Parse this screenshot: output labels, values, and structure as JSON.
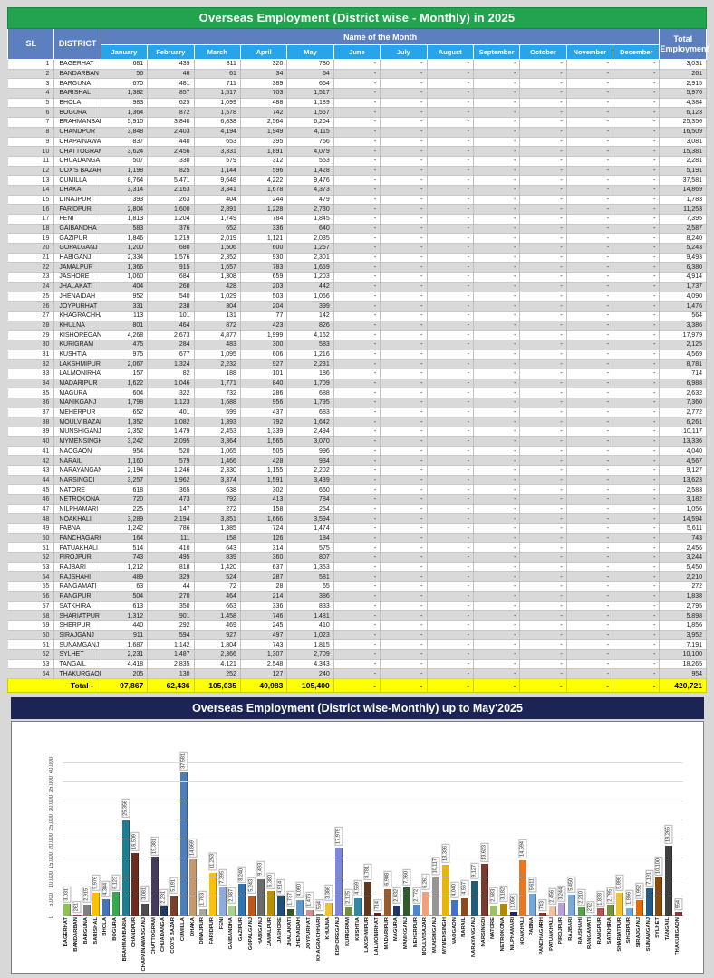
{
  "colors": {
    "page_bg": "#D8D8D8",
    "table_title_bg": "#21A44D",
    "header_band_bg": "#5B7FBF",
    "months_row_bg": "#29A4E9",
    "total_row_bg": "#FFFF00",
    "chart_title_bg": "#1B2455"
  },
  "table": {
    "title": "Overseas Employment (District wise - Monthly) in 2025",
    "header": {
      "sl": "SL",
      "district": "DISTRICT",
      "month_group": "Name of the Month",
      "total": "Total Employment"
    },
    "months": [
      "January",
      "February",
      "March",
      "April",
      "May",
      "June",
      "July",
      "August",
      "September",
      "October",
      "November",
      "December"
    ],
    "empty_cell": "-",
    "rows": [
      [
        "1",
        "BAGERHAT",
        "681",
        "439",
        "811",
        "320",
        "780",
        "3,031"
      ],
      [
        "2",
        "BANDARBAN",
        "56",
        "46",
        "61",
        "34",
        "64",
        "261"
      ],
      [
        "3",
        "BARGUNA",
        "670",
        "481",
        "711",
        "389",
        "664",
        "2,915"
      ],
      [
        "4",
        "BARISHAL",
        "1,382",
        "857",
        "1,517",
        "703",
        "1,517",
        "5,976"
      ],
      [
        "5",
        "BHOLA",
        "983",
        "625",
        "1,099",
        "488",
        "1,189",
        "4,384"
      ],
      [
        "6",
        "BOGURA",
        "1,364",
        "872",
        "1,578",
        "742",
        "1,567",
        "6,123"
      ],
      [
        "7",
        "BRAHMANBARIA",
        "5,910",
        "3,840",
        "6,838",
        "2,564",
        "6,204",
        "25,356"
      ],
      [
        "8",
        "CHANDPUR",
        "3,848",
        "2,403",
        "4,194",
        "1,949",
        "4,115",
        "16,509"
      ],
      [
        "9",
        "CHAPAINAWABGANJ",
        "837",
        "440",
        "653",
        "395",
        "756",
        "3,081"
      ],
      [
        "10",
        "CHATTOGRAM",
        "3,624",
        "2,456",
        "3,331",
        "1,891",
        "4,079",
        "15,381"
      ],
      [
        "11",
        "CHUADANGA",
        "507",
        "330",
        "579",
        "312",
        "553",
        "2,281"
      ],
      [
        "12",
        "COX'S BAZAR",
        "1,198",
        "825",
        "1,144",
        "596",
        "1,428",
        "5,191"
      ],
      [
        "13",
        "CUMILLA",
        "8,764",
        "5,471",
        "9,648",
        "4,222",
        "9,476",
        "37,581"
      ],
      [
        "14",
        "DHAKA",
        "3,314",
        "2,163",
        "3,341",
        "1,678",
        "4,373",
        "14,869"
      ],
      [
        "15",
        "DINAJPUR",
        "393",
        "263",
        "404",
        "244",
        "479",
        "1,783"
      ],
      [
        "16",
        "FARIDPUR",
        "2,804",
        "1,600",
        "2,891",
        "1,228",
        "2,730",
        "11,253"
      ],
      [
        "17",
        "FENI",
        "1,813",
        "1,204",
        "1,749",
        "784",
        "1,845",
        "7,395"
      ],
      [
        "18",
        "GAIBANDHA",
        "583",
        "376",
        "652",
        "336",
        "640",
        "2,587"
      ],
      [
        "19",
        "GAZIPUR",
        "1,846",
        "1,219",
        "2,019",
        "1,121",
        "2,035",
        "8,240"
      ],
      [
        "20",
        "GOPALGANJ",
        "1,200",
        "680",
        "1,506",
        "600",
        "1,257",
        "5,243"
      ],
      [
        "21",
        "HABIGANJ",
        "2,334",
        "1,576",
        "2,352",
        "930",
        "2,301",
        "9,493"
      ],
      [
        "22",
        "JAMALPUR",
        "1,366",
        "915",
        "1,657",
        "783",
        "1,659",
        "6,380"
      ],
      [
        "23",
        "JASHORE",
        "1,060",
        "684",
        "1,308",
        "659",
        "1,203",
        "4,914"
      ],
      [
        "24",
        "JHALAKATI",
        "404",
        "260",
        "428",
        "203",
        "442",
        "1,737"
      ],
      [
        "25",
        "JHENAIDAH",
        "952",
        "540",
        "1,029",
        "503",
        "1,066",
        "4,090"
      ],
      [
        "26",
        "JOYPURHAT",
        "331",
        "238",
        "304",
        "204",
        "399",
        "1,476"
      ],
      [
        "27",
        "KHAGRACHHARI",
        "113",
        "101",
        "131",
        "77",
        "142",
        "564"
      ],
      [
        "28",
        "KHULNA",
        "801",
        "464",
        "872",
        "423",
        "826",
        "3,386"
      ],
      [
        "29",
        "KISHOREGANJ",
        "4,268",
        "2,673",
        "4,877",
        "1,999",
        "4,162",
        "17,979"
      ],
      [
        "30",
        "KURIGRAM",
        "475",
        "284",
        "483",
        "300",
        "583",
        "2,125"
      ],
      [
        "31",
        "KUSHTIA",
        "975",
        "677",
        "1,095",
        "606",
        "1,216",
        "4,569"
      ],
      [
        "32",
        "LAKSHMIPUR",
        "2,067",
        "1,324",
        "2,232",
        "927",
        "2,231",
        "8,781"
      ],
      [
        "33",
        "LALMONIRHAT",
        "157",
        "82",
        "188",
        "101",
        "186",
        "714"
      ],
      [
        "34",
        "MADARIPUR",
        "1,622",
        "1,046",
        "1,771",
        "840",
        "1,709",
        "6,988"
      ],
      [
        "35",
        "MAGURA",
        "604",
        "322",
        "732",
        "286",
        "688",
        "2,632"
      ],
      [
        "36",
        "MANIKGANJ",
        "1,798",
        "1,123",
        "1,688",
        "956",
        "1,795",
        "7,360"
      ],
      [
        "37",
        "MEHERPUR",
        "652",
        "401",
        "599",
        "437",
        "683",
        "2,772"
      ],
      [
        "38",
        "MOULVIBAZAR",
        "1,352",
        "1,082",
        "1,393",
        "792",
        "1,642",
        "6,261"
      ],
      [
        "39",
        "MUNSHIGANJ",
        "2,352",
        "1,479",
        "2,453",
        "1,339",
        "2,494",
        "10,117"
      ],
      [
        "40",
        "MYMENSINGH",
        "3,242",
        "2,095",
        "3,364",
        "1,565",
        "3,070",
        "13,336"
      ],
      [
        "41",
        "NAOGAON",
        "954",
        "520",
        "1,065",
        "505",
        "996",
        "4,040"
      ],
      [
        "42",
        "NARAIL",
        "1,160",
        "579",
        "1,466",
        "428",
        "934",
        "4,567"
      ],
      [
        "43",
        "NARAYANGANJ",
        "2,194",
        "1,246",
        "2,330",
        "1,155",
        "2,202",
        "9,127"
      ],
      [
        "44",
        "NARSINGDI",
        "3,257",
        "1,962",
        "3,374",
        "1,591",
        "3,439",
        "13,623"
      ],
      [
        "45",
        "NATORE",
        "618",
        "365",
        "638",
        "302",
        "660",
        "2,583"
      ],
      [
        "46",
        "NETROKONA",
        "720",
        "473",
        "792",
        "413",
        "784",
        "3,182"
      ],
      [
        "47",
        "NILPHAMARI",
        "225",
        "147",
        "272",
        "158",
        "254",
        "1,056"
      ],
      [
        "48",
        "NOAKHALI",
        "3,289",
        "2,194",
        "3,851",
        "1,666",
        "3,594",
        "14,594"
      ],
      [
        "49",
        "PABNA",
        "1,242",
        "786",
        "1,385",
        "724",
        "1,474",
        "5,611"
      ],
      [
        "50",
        "PANCHAGARH",
        "164",
        "111",
        "158",
        "126",
        "184",
        "743"
      ],
      [
        "51",
        "PATUAKHALI",
        "514",
        "410",
        "643",
        "314",
        "575",
        "2,456"
      ],
      [
        "52",
        "PIROJPUR",
        "743",
        "495",
        "839",
        "360",
        "807",
        "3,244"
      ],
      [
        "53",
        "RAJBARI",
        "1,212",
        "818",
        "1,420",
        "637",
        "1,363",
        "5,450"
      ],
      [
        "54",
        "RAJSHAHI",
        "489",
        "329",
        "524",
        "287",
        "581",
        "2,210"
      ],
      [
        "55",
        "RANGAMATI",
        "63",
        "44",
        "72",
        "28",
        "65",
        "272"
      ],
      [
        "56",
        "RANGPUR",
        "504",
        "270",
        "464",
        "214",
        "386",
        "1,838"
      ],
      [
        "57",
        "SATKHIRA",
        "613",
        "350",
        "663",
        "336",
        "833",
        "2,795"
      ],
      [
        "58",
        "SHARIATPUR",
        "1,312",
        "901",
        "1,458",
        "746",
        "1,481",
        "5,898"
      ],
      [
        "59",
        "SHERPUR",
        "440",
        "292",
        "469",
        "245",
        "410",
        "1,856"
      ],
      [
        "60",
        "SIRAJGANJ",
        "911",
        "594",
        "927",
        "497",
        "1,023",
        "3,952"
      ],
      [
        "61",
        "SUNAMGANJ",
        "1,687",
        "1,142",
        "1,804",
        "743",
        "1,815",
        "7,191"
      ],
      [
        "62",
        "SYLHET",
        "2,231",
        "1,487",
        "2,366",
        "1,307",
        "2,709",
        "10,100"
      ],
      [
        "63",
        "TANGAIL",
        "4,418",
        "2,835",
        "4,121",
        "2,548",
        "4,343",
        "18,265"
      ],
      [
        "64",
        "THAKURGAON",
        "205",
        "130",
        "252",
        "127",
        "240",
        "954"
      ]
    ],
    "total_row": {
      "label": "Total -",
      "values": [
        "97,867",
        "62,436",
        "105,035",
        "49,983",
        "105,400"
      ],
      "grand_total": "420,721"
    }
  },
  "chart_data": {
    "type": "bar",
    "title": "Overseas Employment (District wise-Monthly) up to May'2025",
    "xlabel": "",
    "ylabel": "",
    "ylim": [
      0,
      40000
    ],
    "grid": true,
    "legend": false,
    "yticks": [
      "0",
      "5,000",
      "10,000",
      "15,000",
      "20,000",
      "25,000",
      "30,000",
      "35,000",
      "40,000"
    ],
    "categories": [
      "BAGERHAT",
      "BANDARBAN",
      "BARGUNA",
      "BARISHAL",
      "BHOLA",
      "BOGURA",
      "BRAHMANBARIA",
      "CHANDPUR",
      "CHAPAINAWABGANJ",
      "CHATTOGRAM",
      "CHUADANGA",
      "COX'S BAZAR",
      "CUMILLA",
      "DHAKA",
      "DINAJPUR",
      "FARIDPUR",
      "FENI",
      "GAIBANDHA",
      "GAZIPUR",
      "GOPALGANJ",
      "HABIGANJ",
      "JAMALPUR",
      "JASHORE",
      "JHALAKATI",
      "JHENAIDAH",
      "JOYPURHAT",
      "KHAGRACHHARI",
      "KHULNA",
      "KISHOREGANJ",
      "KURIGRAM",
      "KUSHTIA",
      "LAKSHMIPUR",
      "LALMONIRHAT",
      "MADARIPUR",
      "MAGURA",
      "MANIKGANJ",
      "MEHERPUR",
      "MOULVIBAZAR",
      "MUNSHIGANJ",
      "MYMENSINGH",
      "NAOGAON",
      "NARAIL",
      "NARAYANGANJ",
      "NARSINGDI",
      "NATORE",
      "NETROKONA",
      "NILPHAMARI",
      "NOAKHALI",
      "PABNA",
      "PANCHAGARH",
      "PATUAKHALI",
      "PIROJPUR",
      "RAJBARI",
      "RAJSHAHI",
      "RANGAMATI",
      "RANGPUR",
      "SATKHIRA",
      "SHARIATPUR",
      "SHERPUR",
      "SIRAJGANJ",
      "SUNAMGANJ",
      "SYLHET",
      "TANGAIL",
      "THAKURGAON"
    ],
    "values": [
      3031,
      261,
      2915,
      5976,
      4384,
      6123,
      25356,
      16509,
      3081,
      15381,
      2281,
      5191,
      37581,
      14869,
      1783,
      11253,
      7395,
      2587,
      8240,
      5243,
      9493,
      6380,
      4914,
      1737,
      4090,
      1476,
      564,
      3386,
      17979,
      2125,
      4569,
      8781,
      714,
      6988,
      2632,
      7360,
      2772,
      6261,
      10117,
      13336,
      4040,
      4567,
      9127,
      13623,
      2583,
      3182,
      1056,
      14594,
      5611,
      743,
      2456,
      3244,
      5450,
      2210,
      272,
      1838,
      2795,
      5898,
      1856,
      3952,
      7191,
      10100,
      18265,
      954
    ],
    "data_labels": [
      "3,031",
      "261",
      "2,915",
      "5,976",
      "4,384",
      "6,123",
      "25,356",
      "16,509",
      "3,081",
      "15,381",
      "2,281",
      "5,191",
      "37,581",
      "14,869",
      "1,783",
      "11,253",
      "7,395",
      "2,587",
      "8,240",
      "5,243",
      "9,493",
      "6,380",
      "4,914",
      "1,737",
      "4,090",
      "1,476",
      "564",
      "3,386",
      "17,979",
      "2,125",
      "4,569",
      "8,781",
      "714",
      "6,988",
      "2,632",
      "7,360",
      "2,772",
      "6,261",
      "10,117",
      "13,336",
      "4,040",
      "4,567",
      "9,127",
      "13,623",
      "2,583",
      "3,182",
      "1,056",
      "14,594",
      "5,611",
      "743",
      "2,456",
      "3,244",
      "5,450",
      "2,210",
      "272",
      "1,838",
      "2,795",
      "5,898",
      "1,856",
      "3,952",
      "7,191",
      "10,100",
      "18,265",
      "954"
    ],
    "colors": [
      "#8CC153",
      "#953735",
      "#808080",
      "#FFC000",
      "#4472C4",
      "#35A94C",
      "#1B7E93",
      "#6E2C1F",
      "#4D4D4D",
      "#463A5E",
      "#1F3864",
      "#7B3F2A",
      "#4A7EBD",
      "#C49A6C",
      "#A6A6A6",
      "#FFC000",
      "#8FAADC",
      "#A9D18E",
      "#2E75B6",
      "#C4551A",
      "#6B6B6B",
      "#BF8F00",
      "#1F4E79",
      "#375623",
      "#5B9BD5",
      "#D98C8C",
      "#7F7F7F",
      "#F2C230",
      "#7C86DB",
      "#6F8F3F",
      "#2E8BA8",
      "#5F3A1E",
      "#632523",
      "#9C5B2A",
      "#1F3864",
      "#2F5B2F",
      "#4F86C6",
      "#F2A07B",
      "#969696",
      "#E8B60A",
      "#4472C4",
      "#8C4A1F",
      "#205E75",
      "#7A3B2E",
      "#9CC168",
      "#B08A00",
      "#1A2B5E",
      "#E87722",
      "#76A5D8",
      "#8F3330",
      "#F5C09E",
      "#B8A1D9",
      "#79A9DB",
      "#58A04E",
      "#9BC2E6",
      "#C0504D",
      "#76923C",
      "#F1C232",
      "#6FA8DC",
      "#E36C0A",
      "#1F5C8B",
      "#8A4B08",
      "#3F3F3F",
      "#943634"
    ]
  }
}
